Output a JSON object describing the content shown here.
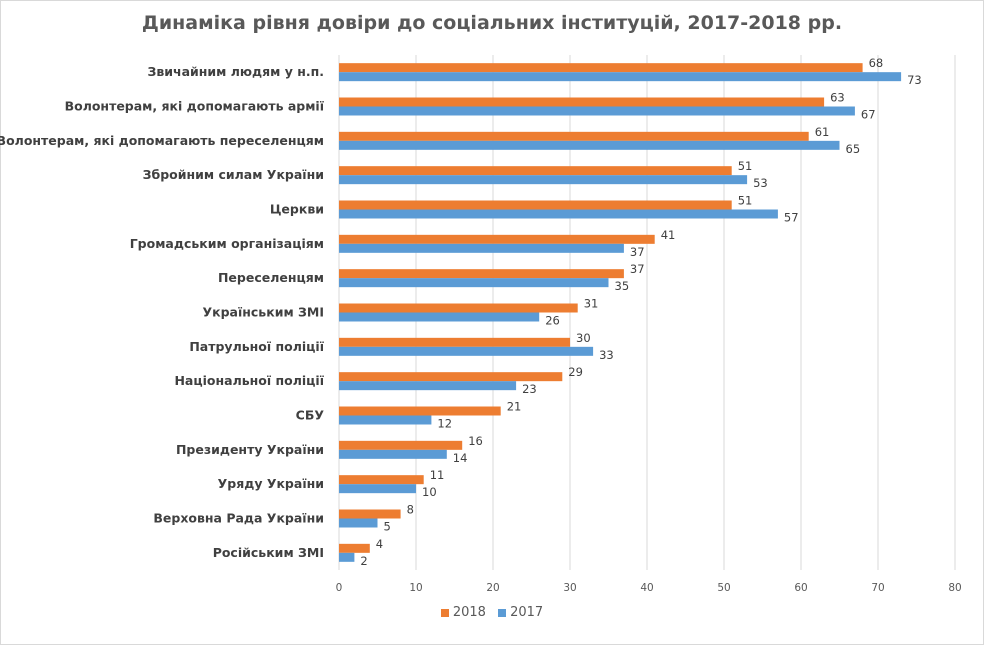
{
  "chart_data": {
    "type": "bar",
    "orientation": "horizontal",
    "title": "Динаміка рівня довіри до соціальних інституцій,  2017-2018 рр.",
    "categories": [
      "Звичайним людям у н.п.",
      "Волонтерам, які допомагають армії",
      "Волонтерам, які допомагають переселенцям",
      "Збройним силам України",
      "Церкви",
      "Громадським організаціям",
      "Переселенцям",
      "Українським ЗМІ",
      "Патрульної поліції",
      "Національної поліції",
      "СБУ",
      "Президенту України",
      "Уряду України",
      "Верховна Рада України",
      "Російським ЗМІ"
    ],
    "series": [
      {
        "name": "2018",
        "color": "#ed7d31",
        "values": [
          68,
          63,
          61,
          51,
          51,
          41,
          37,
          31,
          30,
          29,
          21,
          16,
          11,
          8,
          4
        ]
      },
      {
        "name": "2017",
        "color": "#5b9bd5",
        "values": [
          73,
          67,
          65,
          53,
          57,
          37,
          35,
          26,
          33,
          23,
          12,
          14,
          10,
          5,
          2
        ]
      }
    ],
    "xlim": [
      0,
      80
    ],
    "xticks": [
      0,
      10,
      20,
      30,
      40,
      50,
      60,
      70,
      80
    ],
    "grid": true,
    "legend_position": "bottom"
  }
}
